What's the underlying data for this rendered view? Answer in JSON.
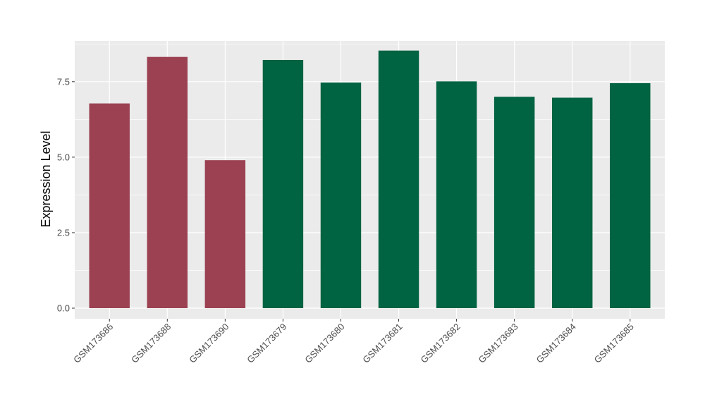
{
  "chart_data": {
    "type": "bar",
    "title": "",
    "xlabel": "",
    "ylabel": "Expression Level",
    "ylim": [
      -0.35,
      8.85
    ],
    "yticks": [
      0.0,
      2.5,
      5.0,
      7.5
    ],
    "ytick_labels": [
      "0.0",
      "2.5",
      "5.0",
      "7.5"
    ],
    "grid": true,
    "legend": "none",
    "categories": [
      "GSM173686",
      "GSM173688",
      "GSM173690",
      "GSM173679",
      "GSM173680",
      "GSM173681",
      "GSM173682",
      "GSM173683",
      "GSM173684",
      "GSM173685"
    ],
    "values": [
      6.78,
      8.32,
      4.9,
      8.22,
      7.47,
      8.53,
      7.51,
      7.0,
      6.97,
      7.45
    ],
    "bar_colors": [
      "#9b4151",
      "#9b4151",
      "#9b4151",
      "#006341",
      "#006341",
      "#006341",
      "#006341",
      "#006341",
      "#006341",
      "#006341"
    ],
    "panel_background": "#ebebeb",
    "grid_color": "#ffffff"
  }
}
